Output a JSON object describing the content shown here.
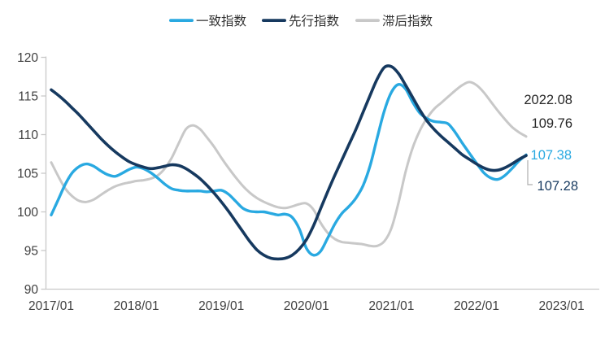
{
  "chart_data": {
    "type": "line",
    "title": "",
    "legend_position": "top",
    "grid": false,
    "x_tick_labels": [
      "2017/01",
      "2018/01",
      "2019/01",
      "2020/01",
      "2021/01",
      "2022/01",
      "2023/01"
    ],
    "y_ticks": [
      120,
      115,
      110,
      105,
      100,
      95,
      90
    ],
    "ylim": [
      90,
      120
    ],
    "x_start": "2017/01",
    "x_end": "2022/08",
    "axis_color": "#c9c9c9",
    "tick_label_color": "#404040",
    "legend_label_color": "#333333",
    "series": [
      {
        "name": "一致指数",
        "key": "coincident",
        "color": "#29a9e1",
        "values": [
          99.6,
          101.6,
          103.6,
          105.1,
          105.9,
          106.2,
          105.9,
          105.3,
          104.8,
          104.6,
          105.0,
          105.5,
          105.8,
          105.6,
          105.1,
          104.4,
          103.6,
          103.0,
          102.8,
          102.7,
          102.7,
          102.7,
          102.6,
          102.7,
          102.8,
          102.3,
          101.4,
          100.5,
          100.1,
          100.0,
          100.0,
          99.8,
          99.6,
          99.7,
          99.3,
          97.8,
          95.3,
          94.4,
          94.9,
          96.6,
          98.4,
          99.8,
          100.7,
          101.8,
          103.4,
          106.0,
          109.6,
          113.1,
          115.5,
          116.5,
          115.9,
          114.2,
          112.8,
          112.1,
          111.7,
          111.6,
          111.4,
          110.3,
          108.9,
          107.6,
          106.3,
          105.1,
          104.4,
          104.2,
          104.7,
          105.6,
          106.6,
          107.38
        ]
      },
      {
        "name": "先行指数",
        "key": "leading",
        "color": "#16395f",
        "values": [
          115.8,
          115.1,
          114.3,
          113.4,
          112.5,
          111.5,
          110.5,
          109.5,
          108.6,
          107.8,
          107.1,
          106.5,
          106.1,
          105.8,
          105.6,
          105.7,
          105.9,
          106.1,
          106.0,
          105.6,
          105.0,
          104.3,
          103.4,
          102.4,
          101.3,
          100.1,
          98.8,
          97.5,
          96.2,
          95.1,
          94.4,
          94.0,
          93.9,
          94.0,
          94.4,
          95.2,
          96.4,
          98.2,
          100.4,
          102.6,
          104.7,
          106.7,
          108.7,
          110.7,
          112.9,
          115.1,
          117.2,
          118.7,
          118.8,
          117.9,
          116.4,
          114.8,
          113.2,
          111.8,
          110.7,
          109.8,
          109.0,
          108.2,
          107.4,
          106.8,
          106.2,
          105.7,
          105.4,
          105.4,
          105.7,
          106.2,
          106.8,
          107.28
        ]
      },
      {
        "name": "滞后指数",
        "key": "lagging",
        "color": "#c8c8c8",
        "values": [
          106.4,
          104.6,
          103.0,
          102.0,
          101.4,
          101.3,
          101.6,
          102.2,
          102.8,
          103.3,
          103.6,
          103.8,
          104.0,
          104.1,
          104.3,
          104.7,
          105.6,
          107.0,
          108.9,
          110.7,
          111.2,
          110.7,
          109.6,
          108.4,
          107.0,
          105.7,
          104.5,
          103.4,
          102.5,
          101.8,
          101.3,
          100.9,
          100.6,
          100.5,
          100.7,
          101.0,
          101.1,
          100.3,
          98.6,
          97.3,
          96.5,
          96.1,
          96.0,
          95.9,
          95.8,
          95.6,
          95.6,
          96.2,
          97.9,
          101.2,
          105.2,
          108.3,
          110.5,
          112.1,
          113.3,
          114.1,
          114.9,
          115.7,
          116.4,
          116.8,
          116.4,
          115.5,
          114.3,
          113.1,
          112.0,
          111.0,
          110.3,
          109.76
        ]
      }
    ],
    "annotations": [
      {
        "text": "2022.08",
        "color": "#262626"
      },
      {
        "text": "109.76",
        "color": "#262626"
      },
      {
        "text": "107.38",
        "color": "#29a9e1"
      },
      {
        "text": "107.28",
        "color": "#16395f"
      }
    ]
  }
}
